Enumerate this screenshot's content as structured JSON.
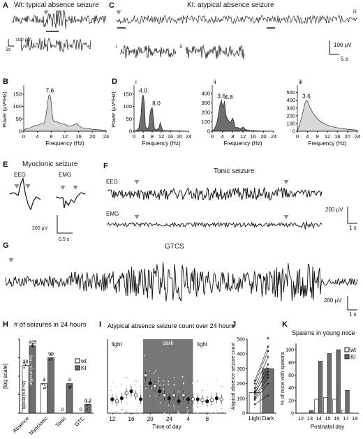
{
  "panels": {
    "A": {
      "letter": "A",
      "title": "Wt: typical absence seizure",
      "scale_v": "100 µV",
      "scale_t": "1s"
    },
    "C": {
      "letter": "C",
      "title": "KI: atypical absence seizure",
      "scale_v": "100 µV",
      "scale_t": "5 s",
      "mark_i": "i",
      "mark_ii": "ii",
      "mark_iii": "iii"
    },
    "E": {
      "letter": "E",
      "title": "Myoclonic seizure",
      "eeg": "EEG",
      "emg": "EMG",
      "scale_v": "200 µV",
      "scale_t": "0.5 s"
    },
    "F": {
      "letter": "F",
      "title": "Tonic seizure",
      "eeg": "EEG",
      "emg": "EMG",
      "scale_v": "200 µV",
      "scale_t": "1 s"
    },
    "G": {
      "letter": "G",
      "title": "GTCS",
      "scale_v": "200 µV",
      "scale_t": "1 s"
    }
  },
  "colors": {
    "trace": "#111111",
    "dark_fill": "#6e6e6e",
    "light_fill": "#d8d8d8",
    "dark_band": "#777777",
    "white": "#ffffff"
  },
  "chart_data": [
    {
      "id": "B",
      "letter": "B",
      "type": "area",
      "xlabel": "Frequency (Hz)",
      "ylabel": "Power (µV²/Hz)",
      "xticks": [
        "0",
        "4",
        "8",
        "12",
        "16",
        "20",
        "24"
      ],
      "yticks": [
        "0",
        "50",
        "100",
        "150"
      ],
      "xlim": [
        0,
        24
      ],
      "ylim": [
        0,
        175
      ],
      "fill": "light",
      "peak_labels": [
        "7.6"
      ],
      "peak_at": [
        7.6
      ],
      "x": [
        0,
        1,
        2,
        3,
        4,
        5,
        6,
        6.6,
        7,
        7.3,
        7.6,
        7.9,
        8.2,
        8.6,
        9,
        10,
        11,
        12,
        13,
        14,
        15,
        15.5,
        16,
        17,
        18,
        20,
        22,
        24
      ],
      "y": [
        6,
        12,
        14,
        22,
        24,
        30,
        34,
        70,
        120,
        143,
        148,
        130,
        80,
        42,
        40,
        36,
        30,
        28,
        20,
        22,
        28,
        32,
        22,
        14,
        12,
        8,
        6,
        3
      ]
    },
    {
      "id": "Di",
      "letter": "D",
      "sub": "i",
      "type": "area",
      "xlabel": "Frequency (Hz)",
      "ylabel": "Power (µV²/Hz)",
      "xticks": [
        "0",
        "4",
        "8",
        "12",
        "16",
        "20",
        "24"
      ],
      "yticks": [
        "0",
        "50",
        "100",
        "150"
      ],
      "xlim": [
        0,
        24
      ],
      "ylim": [
        0,
        175
      ],
      "fill": "dark",
      "peak_labels": [
        "4.0",
        "8.0"
      ],
      "peak_at": [
        4,
        8
      ],
      "x": [
        0,
        1,
        2,
        3,
        3.5,
        4,
        4.5,
        5,
        6,
        6.5,
        7,
        7.5,
        8,
        8.5,
        9,
        10,
        11,
        11.5,
        12,
        12.5,
        13,
        14,
        15,
        16,
        18,
        20,
        24
      ],
      "y": [
        0,
        4,
        10,
        60,
        130,
        148,
        120,
        20,
        8,
        20,
        70,
        90,
        96,
        60,
        10,
        5,
        14,
        35,
        22,
        6,
        3,
        2,
        2,
        2,
        1,
        1,
        0
      ]
    },
    {
      "id": "Dii",
      "letter": "",
      "sub": "ii",
      "type": "area",
      "xlabel": "Frequency (Hz)",
      "ylabel": "",
      "xticks": [
        "0",
        "4",
        "8",
        "12",
        "16",
        "20",
        "24"
      ],
      "yticks": [
        "0",
        "100",
        "200",
        "300",
        "400"
      ],
      "xlim": [
        0,
        24
      ],
      "ylim": [
        0,
        460
      ],
      "fill": "dark",
      "peak_labels": [
        "3.6",
        "4.8"
      ],
      "peak_at": [
        3.6,
        4.8
      ],
      "x": [
        0,
        1,
        2,
        3,
        3.6,
        4.2,
        4.8,
        5.4,
        6,
        7,
        8,
        8.5,
        9,
        10,
        11,
        12,
        13,
        14,
        16,
        18,
        20,
        24
      ],
      "y": [
        0,
        30,
        110,
        280,
        330,
        250,
        320,
        170,
        130,
        90,
        140,
        100,
        40,
        40,
        25,
        45,
        20,
        10,
        6,
        3,
        2,
        0
      ]
    },
    {
      "id": "Diii",
      "letter": "",
      "sub": "iii",
      "type": "area",
      "xlabel": "Frequency (Hz)",
      "ylabel": "",
      "xticks": [
        "0",
        "4",
        "8",
        "12",
        "16",
        "20",
        "24"
      ],
      "yticks": [
        "0",
        "100",
        "200",
        "300",
        "400",
        "500"
      ],
      "xlim": [
        0,
        24
      ],
      "ylim": [
        0,
        560
      ],
      "fill": "light",
      "peak_labels": [
        "3.6"
      ],
      "peak_at": [
        3.6
      ],
      "x": [
        0,
        1,
        2,
        3,
        3.6,
        4,
        5,
        6,
        7,
        8,
        9,
        10,
        12,
        14,
        16,
        18,
        20,
        22,
        24
      ],
      "y": [
        0,
        100,
        220,
        360,
        400,
        390,
        310,
        250,
        200,
        160,
        130,
        110,
        80,
        60,
        45,
        35,
        25,
        20,
        15
      ]
    },
    {
      "id": "H",
      "letter": "H",
      "type": "bar",
      "title": "# of seizures in 24 hours",
      "ylabel": "[log scale]",
      "log_scale": true,
      "ylim": [
        0.1,
        1000
      ],
      "yticks": [
        "0.1",
        "1",
        "10",
        "100",
        "1000"
      ],
      "categories": [
        "Absence",
        "Myoclonic",
        "Tonic",
        "GTC"
      ],
      "legend": [
        "wt",
        "KI"
      ],
      "note_typical": "typical (6-8 Hz)",
      "note_atypical": "atypical (3-7 Hz)",
      "series": [
        {
          "name": "wt",
          "values": [
            38,
            4,
            0,
            0
          ],
          "labels": [
            "38",
            "4",
            "0",
            "0"
          ]
        },
        {
          "name": "KI",
          "values": [
            445,
            99,
            4,
            0.3
          ],
          "labels": [
            "445",
            "99",
            "4",
            "0.3"
          ]
        }
      ]
    },
    {
      "id": "I",
      "letter": "I",
      "type": "scatter",
      "title": "Atypical absence seizure count over 24 hours",
      "xlabel": "Time of day",
      "ylabel": "",
      "light_label": "light",
      "dark_label": "dark",
      "xticks": [
        "12",
        "16",
        "20",
        "24",
        "4",
        "8"
      ],
      "yticks": [
        "0",
        "20",
        "40",
        "60"
      ],
      "x_hours": [
        12,
        13,
        14,
        15,
        16,
        17,
        18,
        19,
        20,
        21,
        22,
        23,
        24,
        25,
        26,
        27,
        28,
        29,
        30,
        31,
        32,
        33,
        34,
        35
      ],
      "mean_counts": [
        14,
        12,
        15,
        20,
        22,
        18,
        14,
        38,
        30,
        27,
        22,
        18,
        15,
        18,
        12,
        18,
        14,
        14,
        14,
        13,
        12,
        13,
        15,
        14
      ],
      "ylim": [
        0,
        70
      ],
      "dark_start": 18.5,
      "dark_end": 29
    },
    {
      "id": "J",
      "letter": "J",
      "type": "bar",
      "ylabel": "Atypical absence seizure count",
      "categories": [
        "Light",
        "Dark"
      ],
      "values": [
        140,
        300
      ],
      "ylim": [
        0,
        500
      ],
      "yticks": [
        "0",
        "100",
        "200",
        "300",
        "400",
        "500"
      ],
      "significance": "*",
      "pairs": [
        [
          60,
          120
        ],
        [
          90,
          200
        ],
        [
          110,
          260
        ],
        [
          130,
          300
        ],
        [
          150,
          330
        ],
        [
          170,
          380
        ],
        [
          200,
          420
        ],
        [
          220,
          450
        ],
        [
          100,
          240
        ],
        [
          140,
          280
        ]
      ]
    },
    {
      "id": "K",
      "letter": "K",
      "type": "bar",
      "title": "Spasms in young mice",
      "xlabel": "Postnatal day",
      "ylabel": "% of mice with spasms",
      "categories": [
        "12",
        "13",
        "14",
        "15",
        "16",
        "17",
        "18"
      ],
      "yticks": [
        "0",
        "20",
        "40",
        "60",
        "80",
        "100"
      ],
      "ylim": [
        0,
        110
      ],
      "legend": [
        "wt",
        "KI"
      ],
      "series": [
        {
          "name": "wt",
          "values": [
            0,
            0,
            22,
            25,
            22,
            5,
            0
          ]
        },
        {
          "name": "KI",
          "values": [
            0,
            4,
            82,
            94,
            100,
            36,
            0
          ]
        }
      ]
    }
  ]
}
